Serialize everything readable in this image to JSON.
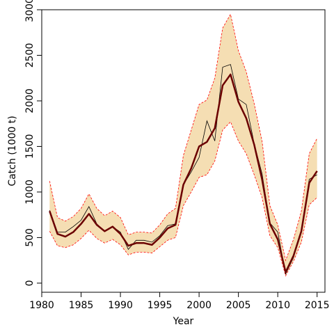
{
  "chart_data": {
    "type": "line",
    "title": "",
    "xlabel": "Year",
    "ylabel": "Catch (1000 t)",
    "xlim": [
      1980,
      2016
    ],
    "ylim": [
      -100,
      3000
    ],
    "xticks": [
      1980,
      1985,
      1990,
      1995,
      2000,
      2005,
      2010,
      2015
    ],
    "yticks": [
      0,
      500,
      1000,
      1500,
      2000,
      2500,
      3000
    ],
    "grid": false,
    "legend": "none",
    "x": [
      1981,
      1982,
      1983,
      1984,
      1985,
      1986,
      1987,
      1988,
      1989,
      1990,
      1991,
      1992,
      1993,
      1994,
      1995,
      1996,
      1997,
      1998,
      1999,
      2000,
      2001,
      2002,
      2003,
      2004,
      2005,
      2006,
      2007,
      2008,
      2009,
      2010,
      2011,
      2012,
      2013,
      2014,
      2015
    ],
    "series": [
      {
        "role": "band_upper",
        "color": "#ff0000",
        "fill": "#f5deb3",
        "values": [
          1120,
          720,
          680,
          730,
          820,
          980,
          820,
          740,
          790,
          720,
          530,
          560,
          560,
          550,
          640,
          760,
          820,
          1400,
          1680,
          1960,
          2010,
          2250,
          2800,
          2950,
          2550,
          2320,
          1970,
          1560,
          850,
          640,
          250,
          480,
          790,
          1420,
          1590
        ]
      },
      {
        "role": "band_lower",
        "color": "#ff0000",
        "values": [
          570,
          410,
          390,
          420,
          490,
          580,
          490,
          440,
          480,
          420,
          310,
          340,
          340,
          330,
          400,
          470,
          500,
          850,
          1000,
          1160,
          1190,
          1340,
          1680,
          1770,
          1560,
          1420,
          1190,
          940,
          520,
          390,
          80,
          240,
          450,
          860,
          940
        ]
      },
      {
        "role": "observed",
        "color": "#000000",
        "values": [
          800,
          560,
          560,
          620,
          690,
          840,
          650,
          570,
          620,
          560,
          370,
          470,
          470,
          450,
          520,
          630,
          650,
          1080,
          1220,
          1380,
          1780,
          1560,
          2370,
          2400,
          2020,
          1960,
          1530,
          1200,
          660,
          560,
          100,
          280,
          580,
          1140,
          1190
        ]
      },
      {
        "role": "fitted",
        "color": "#6b0000",
        "values": [
          790,
          540,
          510,
          560,
          650,
          760,
          640,
          570,
          620,
          540,
          410,
          440,
          440,
          420,
          500,
          600,
          640,
          1080,
          1260,
          1500,
          1550,
          1700,
          2170,
          2290,
          1990,
          1810,
          1520,
          1140,
          650,
          480,
          120,
          300,
          570,
          1100,
          1230
        ]
      }
    ]
  }
}
